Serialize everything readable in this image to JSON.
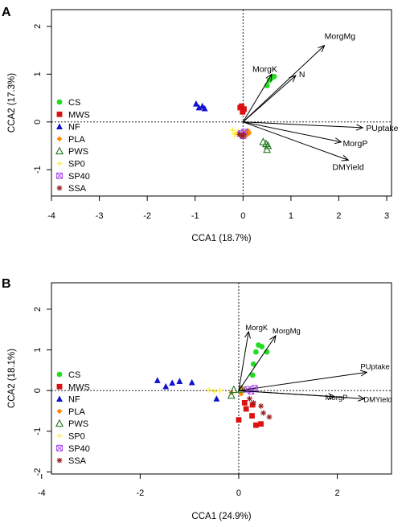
{
  "chart_data": [
    {
      "panel": "A",
      "type": "scatter",
      "xlabel": "CCA1 (18.7%)",
      "ylabel": "CCA2 (17.3%)",
      "xlim": [
        -4,
        3.1
      ],
      "ylim": [
        -1.55,
        2.35
      ],
      "xticks": [
        -4,
        -3,
        -2,
        -1,
        0,
        1,
        2,
        3
      ],
      "yticks": [
        -1,
        0,
        1,
        2
      ],
      "grid": false,
      "legend_position": "left",
      "series": [
        {
          "name": "CS",
          "marker": "circle",
          "color": "#22dd22",
          "points": [
            [
              0.5,
              0.76
            ],
            [
              0.55,
              0.87
            ],
            [
              0.6,
              0.92
            ],
            [
              0.65,
              0.95
            ]
          ]
        },
        {
          "name": "MWS",
          "marker": "square",
          "color": "#dd1111",
          "points": [
            [
              -0.06,
              0.3
            ],
            [
              -0.03,
              0.33
            ],
            [
              0.0,
              0.25
            ],
            [
              -0.01,
              0.21
            ],
            [
              0.02,
              0.27
            ]
          ]
        },
        {
          "name": "NF",
          "marker": "triangle",
          "color": "#1111cc",
          "points": [
            [
              -0.98,
              0.38
            ],
            [
              -0.92,
              0.3
            ],
            [
              -0.85,
              0.33
            ],
            [
              -0.8,
              0.28
            ]
          ]
        },
        {
          "name": "PLA",
          "marker": "diamond",
          "color": "#ff8800",
          "points": [
            [
              0.05,
              -0.22
            ],
            [
              0.1,
              -0.18
            ],
            [
              0.07,
              -0.28
            ],
            [
              0.13,
              -0.23
            ]
          ]
        },
        {
          "name": "PWS",
          "marker": "triangle-open",
          "color": "#227722",
          "points": [
            [
              0.42,
              -0.42
            ],
            [
              0.48,
              -0.46
            ],
            [
              0.52,
              -0.5
            ],
            [
              0.5,
              -0.58
            ]
          ]
        },
        {
          "name": "SP0",
          "marker": "plus",
          "color": "#ffee33",
          "points": [
            [
              -0.22,
              -0.17
            ],
            [
              -0.15,
              -0.24
            ],
            [
              -0.1,
              -0.2
            ],
            [
              -0.18,
              -0.26
            ]
          ]
        },
        {
          "name": "SP40",
          "marker": "box-x",
          "color": "#aa44ee",
          "points": [
            [
              -0.04,
              -0.24
            ],
            [
              0.0,
              -0.29
            ],
            [
              0.03,
              -0.21
            ]
          ]
        },
        {
          "name": "SSA",
          "marker": "asterisk",
          "color": "#992222",
          "points": [
            [
              -0.08,
              -0.26
            ],
            [
              -0.02,
              -0.3
            ],
            [
              0.01,
              -0.27
            ]
          ]
        }
      ],
      "vectors": [
        {
          "label": "MorgMg",
          "x": 1.7,
          "y": 1.6
        },
        {
          "label": "MorgK",
          "x": 0.6,
          "y": 1.0
        },
        {
          "label": "N",
          "x": 1.1,
          "y": 0.97
        },
        {
          "label": "PUptake",
          "x": 2.5,
          "y": -0.12
        },
        {
          "label": "MorgP",
          "x": 2.05,
          "y": -0.42
        },
        {
          "label": "DMYield",
          "x": 2.2,
          "y": -0.8
        }
      ]
    },
    {
      "panel": "B",
      "type": "scatter",
      "xlabel": "CCA1 (24.9%)",
      "ylabel": "CCA2 (18.1%)",
      "xlim": [
        -3.8,
        3.1
      ],
      "ylim": [
        -2.05,
        2.65
      ],
      "xticks": [
        -4,
        -2,
        0,
        2
      ],
      "yticks": [
        -2,
        -1,
        0,
        1,
        2
      ],
      "grid": false,
      "legend_position": "left",
      "series": [
        {
          "name": "CS",
          "marker": "circle",
          "color": "#22dd22",
          "points": [
            [
              0.3,
              0.65
            ],
            [
              0.35,
              0.95
            ],
            [
              0.4,
              1.12
            ],
            [
              0.47,
              1.08
            ],
            [
              0.57,
              0.95
            ],
            [
              0.28,
              0.38
            ]
          ]
        },
        {
          "name": "MWS",
          "marker": "square",
          "color": "#dd1111",
          "points": [
            [
              0.0,
              -0.72
            ],
            [
              0.15,
              -0.45
            ],
            [
              0.27,
              -0.62
            ],
            [
              0.35,
              -0.85
            ],
            [
              0.45,
              -0.82
            ],
            [
              0.28,
              -0.35
            ],
            [
              0.12,
              -0.3
            ]
          ]
        },
        {
          "name": "NF",
          "marker": "triangle",
          "color": "#1111cc",
          "points": [
            [
              -1.65,
              0.25
            ],
            [
              -1.48,
              0.1
            ],
            [
              -1.35,
              0.19
            ],
            [
              -1.2,
              0.23
            ],
            [
              -0.95,
              0.2
            ],
            [
              -0.45,
              -0.2
            ]
          ]
        },
        {
          "name": "PLA",
          "marker": "diamond",
          "color": "#ff8800",
          "points": [
            [
              0.08,
              0.05
            ],
            [
              0.05,
              -0.08
            ],
            [
              -0.15,
              -0.05
            ]
          ]
        },
        {
          "name": "PWS",
          "marker": "triangle-open",
          "color": "#227722",
          "points": [
            [
              -0.15,
              -0.12
            ],
            [
              -0.1,
              0.02
            ],
            [
              0.05,
              0.03
            ]
          ]
        },
        {
          "name": "SP0",
          "marker": "plus",
          "color": "#ffee33",
          "points": [
            [
              -0.6,
              0.02
            ],
            [
              -0.5,
              -0.02
            ],
            [
              -0.38,
              0.0
            ]
          ]
        },
        {
          "name": "SP40",
          "marker": "box-x",
          "color": "#aa44ee",
          "points": [
            [
              0.18,
              0.03
            ],
            [
              0.32,
              0.06
            ],
            [
              0.25,
              -0.02
            ]
          ]
        },
        {
          "name": "SSA",
          "marker": "asterisk",
          "color": "#992222",
          "points": [
            [
              0.22,
              -0.2
            ],
            [
              0.3,
              -0.3
            ],
            [
              0.45,
              -0.38
            ],
            [
              0.5,
              -0.55
            ],
            [
              0.62,
              -0.65
            ]
          ]
        }
      ],
      "vectors": [
        {
          "label": "MorgK",
          "x": 0.2,
          "y": 1.45
        },
        {
          "label": "MorgMg",
          "x": 0.75,
          "y": 1.35
        },
        {
          "label": "PUptake",
          "x": 2.6,
          "y": 0.45
        },
        {
          "label": "MorgP",
          "x": 1.95,
          "y": -0.15
        },
        {
          "label": "DMYield",
          "x": 2.55,
          "y": -0.2
        }
      ]
    }
  ]
}
